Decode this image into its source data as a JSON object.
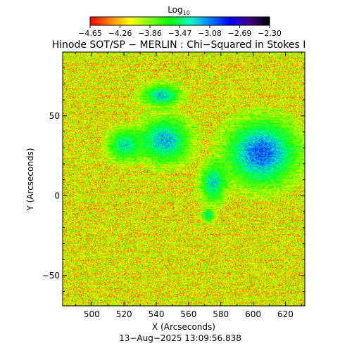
{
  "chart_data": {
    "type": "heatmap",
    "title": "Hinode SOT/SP − MERLIN : Chi−Squared in Stokes I",
    "xlabel": "X (Arcseconds)",
    "ylabel": "Y (Arcseconds)",
    "xlim": [
      482,
      632
    ],
    "ylim": [
      -69,
      90
    ],
    "xticks": [
      500,
      520,
      540,
      560,
      580,
      600,
      620
    ],
    "yticks": [
      -50,
      0,
      50
    ],
    "colorbar": {
      "label_base": "Log",
      "label_sub": "10",
      "range": [
        -4.65,
        -2.3
      ],
      "ticks": [
        "−4.65",
        "−4.26",
        "−3.86",
        "−3.47",
        "−3.08",
        "−2.69",
        "−2.30"
      ],
      "colormap": [
        "#ff0000",
        "#ff8000",
        "#ffff00",
        "#80ff00",
        "#00ff00",
        "#00ffc0",
        "#0080ff",
        "#0000ff",
        "#400080",
        "#000000"
      ]
    },
    "background_level": -4.1,
    "features": [
      {
        "description": "cyan blob",
        "x": 543,
        "y": 63,
        "radius_x": 12,
        "radius_y": 7,
        "level": -3.3
      },
      {
        "description": "cyan blob",
        "x": 520,
        "y": 32,
        "radius_x": 10,
        "radius_y": 10,
        "level": -3.35
      },
      {
        "description": "cyan-blue region",
        "x": 545,
        "y": 35,
        "radius_x": 16,
        "radius_y": 14,
        "level": -3.2
      },
      {
        "description": "cyan-blue region",
        "x": 605,
        "y": 27,
        "radius_x": 22,
        "radius_y": 20,
        "level": -3.0
      },
      {
        "description": "cyan patch",
        "x": 575,
        "y": 8,
        "radius_x": 8,
        "radius_y": 12,
        "level": -3.3
      },
      {
        "description": "cyan patch",
        "x": 572,
        "y": -12,
        "radius_x": 4,
        "radius_y": 4,
        "level": -3.4
      }
    ]
  },
  "timestamp": "13−Aug−2025 13:09:56.838"
}
